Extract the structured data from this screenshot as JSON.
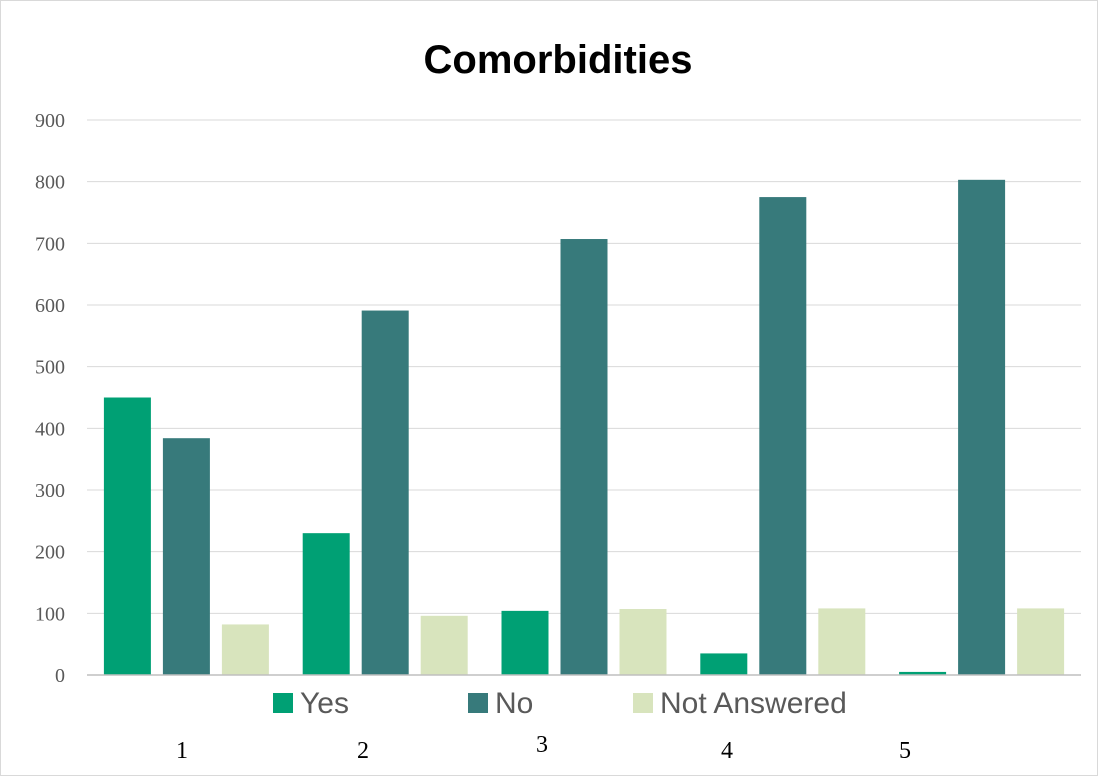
{
  "chart_data": {
    "type": "bar",
    "title": "Comorbidities",
    "xlabel": "",
    "ylabel": "",
    "ylim": [
      0,
      900
    ],
    "yticks": [
      0,
      100,
      200,
      300,
      400,
      500,
      600,
      700,
      800,
      900
    ],
    "categories": [
      "1",
      "2",
      "3",
      "4",
      "5"
    ],
    "series": [
      {
        "name": "Yes",
        "color": "#00a074",
        "values": [
          450,
          230,
          104,
          35,
          5
        ]
      },
      {
        "name": "No",
        "color": "#377a7b",
        "values": [
          384,
          591,
          707,
          775,
          803
        ]
      },
      {
        "name": "Not Answered",
        "color": "#d8e4bd",
        "values": [
          82,
          96,
          107,
          108,
          108
        ]
      }
    ],
    "grid": true,
    "legend_position": "bottom"
  }
}
